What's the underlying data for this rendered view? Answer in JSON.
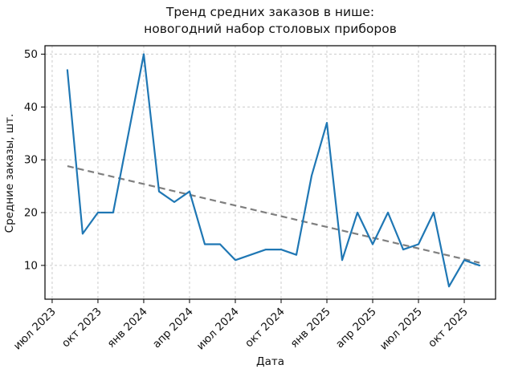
{
  "chart_data": {
    "type": "line",
    "title_line1": "Тренд средних заказов в нише:",
    "title_line2": "новогодний набор столовых приборов",
    "xlabel": "Дата",
    "ylabel": "Средние заказы, шт.",
    "series": [
      {
        "name": "Средние заказы",
        "type": "line",
        "color": "#1f77b4",
        "x": [
          "авг 2023",
          "сен 2023",
          "окт 2023",
          "ноя 2023",
          "дек 2023",
          "янв 2024",
          "фев 2024",
          "мар 2024",
          "апр 2024",
          "май 2024",
          "июн 2024",
          "июл 2024",
          "авг 2024",
          "сен 2024",
          "окт 2024",
          "ноя 2024",
          "дек 2024",
          "янв 2025",
          "фев 2025",
          "мар 2025",
          "апр 2025",
          "май 2025",
          "июн 2025",
          "июл 2025",
          "авг 2025",
          "сен 2025",
          "окт 2025",
          "ноя 2025"
        ],
        "values": [
          47,
          16,
          20,
          20,
          35,
          50,
          24,
          22,
          24,
          14,
          14,
          11,
          12,
          13,
          13,
          12,
          27,
          37,
          11,
          20,
          14,
          20,
          13,
          14,
          20,
          6,
          11,
          10
        ]
      },
      {
        "name": "Линия тренда",
        "type": "trend-dashed",
        "color": "#7f7f7f",
        "start": {
          "x": "авг 2023",
          "month_index": 0,
          "value": 28.8
        },
        "end": {
          "x": "ноя 2025",
          "month_index": 27,
          "value": 10.5
        }
      }
    ],
    "x_ticks": [
      {
        "label": "июл 2023",
        "month_index": -1
      },
      {
        "label": "окт 2023",
        "month_index": 2
      },
      {
        "label": "янв 2024",
        "month_index": 5
      },
      {
        "label": "апр 2024",
        "month_index": 8
      },
      {
        "label": "июл 2024",
        "month_index": 11
      },
      {
        "label": "окт 2024",
        "month_index": 14
      },
      {
        "label": "янв 2025",
        "month_index": 17
      },
      {
        "label": "апр 2025",
        "month_index": 20
      },
      {
        "label": "июл 2025",
        "month_index": 23
      },
      {
        "label": "окт 2025",
        "month_index": 26
      }
    ],
    "y_ticks": [
      10,
      20,
      30,
      40,
      50
    ],
    "xlim": [
      -1.47,
      28.05
    ],
    "ylim": [
      3.6,
      51.6
    ],
    "grid": true,
    "grid_style": "dashed",
    "legend": "none",
    "colors": {
      "line": "#1f77b4",
      "trend": "#7f7f7f",
      "grid": "#cccccc",
      "axis": "#000000",
      "background": "#ffffff"
    }
  }
}
